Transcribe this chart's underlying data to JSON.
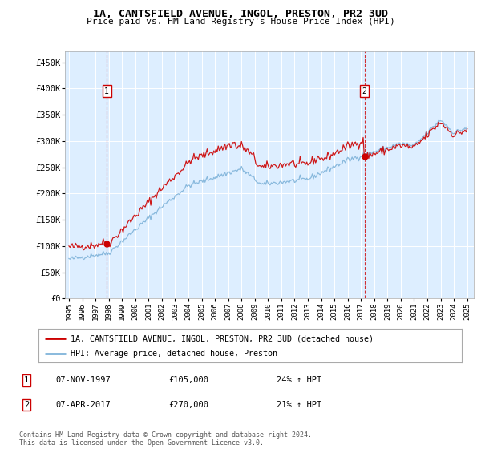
{
  "title": "1A, CANTSFIELD AVENUE, INGOL, PRESTON, PR2 3UD",
  "subtitle": "Price paid vs. HM Land Registry's House Price Index (HPI)",
  "legend_line1": "1A, CANTSFIELD AVENUE, INGOL, PRESTON, PR2 3UD (detached house)",
  "legend_line2": "HPI: Average price, detached house, Preston",
  "annotation1_label": "1",
  "annotation1_date": "07-NOV-1997",
  "annotation1_price": "£105,000",
  "annotation1_hpi": "24% ↑ HPI",
  "annotation2_label": "2",
  "annotation2_date": "07-APR-2017",
  "annotation2_price": "£270,000",
  "annotation2_hpi": "21% ↑ HPI",
  "footer": "Contains HM Land Registry data © Crown copyright and database right 2024.\nThis data is licensed under the Open Government Licence v3.0.",
  "house_color": "#cc0000",
  "hpi_color": "#7fb3d9",
  "plot_bg_color": "#ddeeff",
  "ylim": [
    0,
    470000
  ],
  "yticks": [
    0,
    50000,
    100000,
    150000,
    200000,
    250000,
    300000,
    350000,
    400000,
    450000
  ],
  "ytick_labels": [
    "£0",
    "£50K",
    "£100K",
    "£150K",
    "£200K",
    "£250K",
    "£300K",
    "£350K",
    "£400K",
    "£450K"
  ],
  "xtick_years": [
    1995,
    1996,
    1997,
    1998,
    1999,
    2000,
    2001,
    2002,
    2003,
    2004,
    2005,
    2006,
    2007,
    2008,
    2009,
    2010,
    2011,
    2012,
    2013,
    2014,
    2015,
    2016,
    2017,
    2018,
    2019,
    2020,
    2021,
    2022,
    2023,
    2024,
    2025
  ],
  "sale1_x": 1997.85,
  "sale1_y": 105000,
  "sale2_x": 2017.27,
  "sale2_y": 270000
}
